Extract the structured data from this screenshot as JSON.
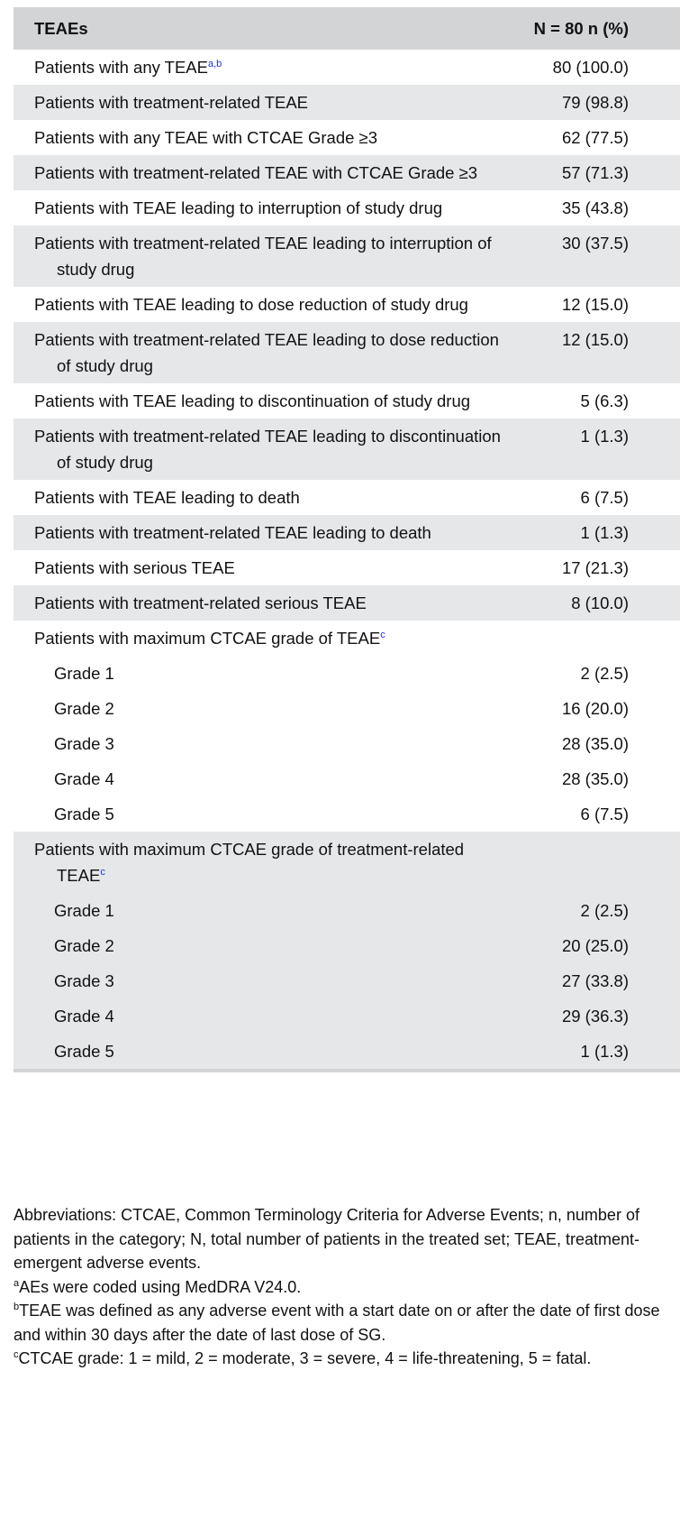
{
  "header": {
    "col1": "TEAEs",
    "col2": "N = 80 n (%)"
  },
  "rows": [
    {
      "label": "Patients with any TEAE",
      "sup": "a,b",
      "value": "80 (100.0)",
      "gray": false
    },
    {
      "label": "Patients with treatment-related TEAE",
      "value": "79 (98.8)",
      "gray": true
    },
    {
      "label": "Patients with any TEAE with CTCAE Grade ≥3",
      "value": "62 (77.5)",
      "gray": false
    },
    {
      "label": "Patients with treatment-related TEAE with CTCAE Grade ≥3",
      "value": "57 (71.3)",
      "gray": true
    },
    {
      "label": "Patients with TEAE leading to interruption of study drug",
      "value": "35 (43.8)",
      "gray": false
    },
    {
      "label": "Patients with treatment-related TEAE leading to interruption of study drug",
      "value": "30 (37.5)",
      "gray": true
    },
    {
      "label": "Patients with TEAE leading to dose reduction of study drug",
      "value": "12 (15.0)",
      "gray": false
    },
    {
      "label": "Patients with treatment-related TEAE leading to dose reduction of study drug",
      "value": "12 (15.0)",
      "gray": true
    },
    {
      "label": "Patients with TEAE leading to discontinuation of study drug",
      "value": "5 (6.3)",
      "gray": false
    },
    {
      "label": "Patients with treatment-related TEAE leading to discontinuation of study drug",
      "value": "1 (1.3)",
      "gray": true
    },
    {
      "label": "Patients with TEAE leading to death",
      "value": "6 (7.5)",
      "gray": false
    },
    {
      "label": "Patients with treatment-related TEAE leading to death",
      "value": "1 (1.3)",
      "gray": true
    },
    {
      "label": "Patients with serious TEAE",
      "value": "17 (21.3)",
      "gray": false
    },
    {
      "label": "Patients with treatment-related serious TEAE",
      "value": "8 (10.0)",
      "gray": true
    },
    {
      "label": "Patients with maximum CTCAE grade of TEAE",
      "sup": "c",
      "value": "",
      "gray": false
    },
    {
      "label": "Grade 1",
      "value": "2 (2.5)",
      "gray": false,
      "sub": true
    },
    {
      "label": "Grade 2",
      "value": "16 (20.0)",
      "gray": false,
      "sub": true
    },
    {
      "label": "Grade 3",
      "value": "28 (35.0)",
      "gray": false,
      "sub": true
    },
    {
      "label": "Grade 4",
      "value": "28 (35.0)",
      "gray": false,
      "sub": true
    },
    {
      "label": "Grade 5",
      "value": "6 (7.5)",
      "gray": false,
      "sub": true
    },
    {
      "label": "Patients with maximum CTCAE grade of treatment-related TEAE",
      "sup": "c",
      "value": "",
      "gray": true
    },
    {
      "label": "Grade 1",
      "value": "2 (2.5)",
      "gray": true,
      "sub": true
    },
    {
      "label": "Grade 2",
      "value": "20 (25.0)",
      "gray": true,
      "sub": true
    },
    {
      "label": "Grade 3",
      "value": "27 (33.8)",
      "gray": true,
      "sub": true
    },
    {
      "label": "Grade 4",
      "value": "29 (36.3)",
      "gray": true,
      "sub": true
    },
    {
      "label": "Grade 5",
      "value": "1 (1.3)",
      "gray": true,
      "sub": true
    }
  ],
  "notes": {
    "abbrev": "Abbreviations: CTCAE, Common Terminology Criteria for Adverse Events; n, number of patients in the category; N, total number of patients in the treated set; TEAE, treatment-emergent adverse events.",
    "a_mark": "a",
    "a": "AEs were coded using MedDRA V24.0.",
    "b_mark": "b",
    "b": "TEAE was defined as any adverse event with a start date on or after the date of first dose and within 30 days after the date of last dose of SG.",
    "c_mark": "c",
    "c": "CTCAE grade: 1 = mild, 2 = moderate, 3 = severe, 4 = life-threatening, 5 = fatal."
  },
  "colors": {
    "header_bg": "#d3d4d6",
    "stripe_bg": "#e6e7e9",
    "footnote_link": "#1f2ee8"
  }
}
